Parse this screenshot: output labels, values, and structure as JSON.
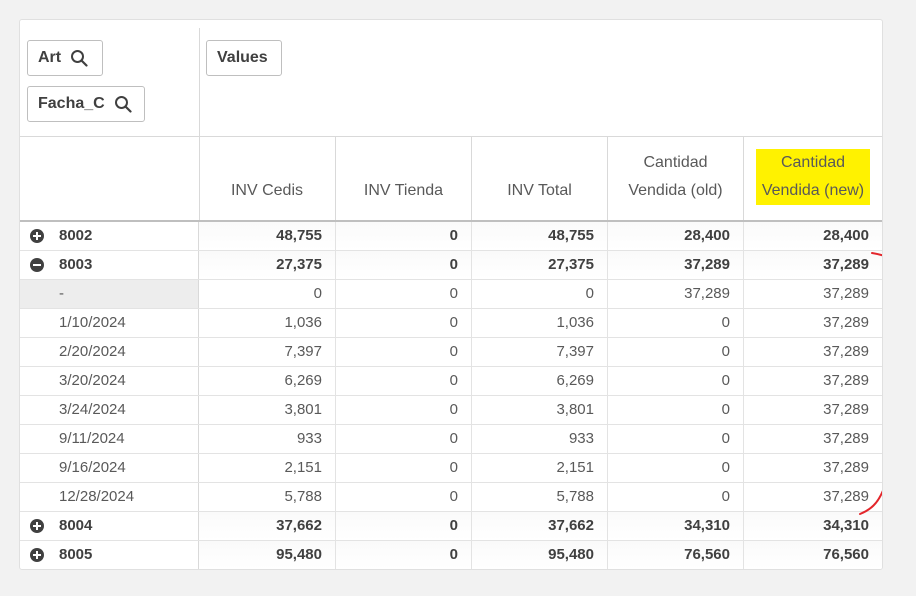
{
  "filters": {
    "art_label": "Art",
    "fecha_label": "Facha_C",
    "values_label": "Values"
  },
  "columns": [
    {
      "label": "INV Cedis"
    },
    {
      "label": "INV Tienda"
    },
    {
      "label": "INV Total"
    },
    {
      "label": "Cantidad Vendida (old)"
    },
    {
      "label": "Cantidad Vendida (new)",
      "highlight": "#fff200"
    }
  ],
  "rows": [
    {
      "label": "8002",
      "type": "parent",
      "expanded": false,
      "values": [
        "48,755",
        "0",
        "48,755",
        "28,400",
        "28,400"
      ]
    },
    {
      "label": "8003",
      "type": "parent",
      "expanded": true,
      "values": [
        "27,375",
        "0",
        "27,375",
        "37,289",
        "37,289"
      ]
    },
    {
      "label": "-",
      "type": "child",
      "values": [
        "0",
        "0",
        "0",
        "37,289",
        "37,289"
      ]
    },
    {
      "label": "1/10/2024",
      "type": "child",
      "values": [
        "1,036",
        "0",
        "1,036",
        "0",
        "37,289"
      ]
    },
    {
      "label": "2/20/2024",
      "type": "child",
      "values": [
        "7,397",
        "0",
        "7,397",
        "0",
        "37,289"
      ]
    },
    {
      "label": "3/20/2024",
      "type": "child",
      "values": [
        "6,269",
        "0",
        "6,269",
        "0",
        "37,289"
      ]
    },
    {
      "label": "3/24/2024",
      "type": "child",
      "values": [
        "3,801",
        "0",
        "3,801",
        "0",
        "37,289"
      ]
    },
    {
      "label": "9/11/2024",
      "type": "child",
      "values": [
        "933",
        "0",
        "933",
        "0",
        "37,289"
      ]
    },
    {
      "label": "9/16/2024",
      "type": "child",
      "values": [
        "2,151",
        "0",
        "2,151",
        "0",
        "37,289"
      ]
    },
    {
      "label": "12/28/2024",
      "type": "child",
      "values": [
        "5,788",
        "0",
        "5,788",
        "0",
        "37,289"
      ]
    },
    {
      "label": "8004",
      "type": "parent",
      "expanded": false,
      "values": [
        "37,662",
        "0",
        "37,662",
        "34,310",
        "34,310"
      ]
    },
    {
      "label": "8005",
      "type": "parent",
      "expanded": false,
      "values": [
        "95,480",
        "0",
        "95,480",
        "76,560",
        "76,560"
      ]
    }
  ],
  "annotation": {
    "color": "#e3262b"
  }
}
